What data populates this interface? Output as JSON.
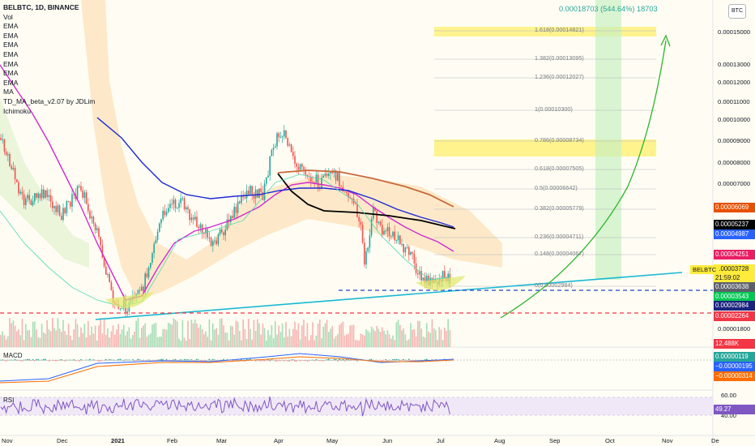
{
  "header": {
    "symbol_line": "BELBTC, 1D, BINANCE",
    "indicators": [
      "Vol",
      "EMA",
      "EMA",
      "EMA",
      "EMA",
      "EMA",
      "EMA",
      "EMA",
      "MA",
      "TD_MA_beta_v2.07 by JDLim",
      "Ichimoku"
    ]
  },
  "currency_button": "BTC",
  "projection_label": "0.00018703 (544.64%) 18703",
  "price_axis": {
    "ticks": [
      "0.00015000",
      "0.00013000",
      "0.00012000",
      "0.00011000",
      "0.00010000",
      "0.00009000",
      "0.00008000",
      "0.00007000",
      "0.00001800"
    ],
    "tick_values": [
      0.00015,
      0.00013,
      0.00012,
      0.00011,
      0.0001,
      9e-05,
      8e-05,
      7e-05,
      1.8e-05
    ]
  },
  "price_boxes": [
    {
      "text": "0.00006069",
      "bg": "#e65100",
      "fg": "#ffffff"
    },
    {
      "text": "0.00005237",
      "bg": "#000000",
      "fg": "#ffffff"
    },
    {
      "text": "0.00004987",
      "bg": "#2962ff",
      "fg": "#ffffff"
    },
    {
      "text": "0.00004251",
      "bg": "#e91e63",
      "fg": "#ffffff"
    },
    {
      "text": "0.00003728",
      "bg": "#ffeb3b",
      "fg": "#131722"
    },
    {
      "text": "21:59:02",
      "bg": "#ffeb3b",
      "fg": "#131722"
    },
    {
      "text": "0.00003638",
      "bg": "#5d606b",
      "fg": "#ffffff"
    },
    {
      "text": "0.00003543",
      "bg": "#00c853",
      "fg": "#ffffff"
    },
    {
      "text": "0.00002984",
      "bg": "#1a237e",
      "fg": "#ffffff"
    },
    {
      "text": "0.00002264",
      "bg": "#f23645",
      "fg": "#ffffff"
    },
    {
      "text": "12.488K",
      "bg": "#f23645",
      "fg": "#ffffff"
    }
  ],
  "symbol_badge": "BELBTC",
  "fib_levels": [
    {
      "label": "1.618(0.00014821)",
      "value": 0.00014821
    },
    {
      "label": "1.382(0.00013095)",
      "value": 0.00013095
    },
    {
      "label": "1.236(0.00012027)",
      "value": 0.00012027
    },
    {
      "label": "1(0.00010300)",
      "value": 0.000103
    },
    {
      "label": "0.786(0.00008734)",
      "value": 8.734e-05
    },
    {
      "label": "0.618(0.00007505)",
      "value": 7.505e-05
    },
    {
      "label": "0.5(0.00006642)",
      "value": 6.642e-05
    },
    {
      "label": "0.382(0.00005779)",
      "value": 5.779e-05
    },
    {
      "label": "0.236(0.00004711)",
      "value": 4.711e-05
    },
    {
      "label": "0.148(0.00004067)",
      "value": 4.067e-05
    },
    {
      "label": "0(0.00002984)",
      "value": 2.984e-05
    }
  ],
  "macd": {
    "title": "MACD",
    "values": [
      {
        "text": "0.00000119",
        "bg": "#26a69a",
        "fg": "#ffffff"
      },
      {
        "text": "−0.00000195",
        "bg": "#2962ff",
        "fg": "#ffffff"
      },
      {
        "text": "−0.00000314",
        "bg": "#ff6d00",
        "fg": "#ffffff"
      }
    ]
  },
  "rsi": {
    "title": "RSI",
    "levels": [
      "60.00",
      "40.00"
    ],
    "value": "49.27",
    "value_color": "#7e57c2"
  },
  "time_axis": [
    "Nov",
    "Dec",
    "2021",
    "Feb",
    "Mar",
    "Apr",
    "May",
    "Jun",
    "Jul",
    "Aug",
    "Sep",
    "Oct",
    "Nov",
    "De"
  ],
  "colors": {
    "bull": "#26a69a",
    "bear": "#ef5350",
    "ema_blue": "#1e2bd6",
    "ema_magenta": "#d12ad1",
    "ma_black": "#000000",
    "ma_brown": "#c8693b",
    "trend": "#17b9d4",
    "support": "#2244cc",
    "stop": "#f23645",
    "arrow": "#2db52d",
    "fib_zone": "#ffeb3b"
  },
  "chart_data": {
    "type": "candlestick",
    "timeframe": "1D",
    "exchange": "BINANCE",
    "symbol": "BELBTC",
    "last_price": 3.728e-05,
    "approx_close_path": [
      {
        "x": "Nov",
        "y": 7.2e-05
      },
      {
        "x": "Dec",
        "y": 4.8e-05
      },
      {
        "x": "2021",
        "y": 1.8e-05
      },
      {
        "x": "Feb",
        "y": 4.2e-05
      },
      {
        "x": "Mar",
        "y": 4.8e-05
      },
      {
        "x": "Apr",
        "y": 8.6e-05
      },
      {
        "x": "May",
        "y": 6.8e-05
      },
      {
        "x": "Jun",
        "y": 3.8e-05
      },
      {
        "x": "Jul",
        "y": 3.7e-05
      }
    ],
    "target": 0.00018703,
    "target_change_pct": 544.64
  }
}
